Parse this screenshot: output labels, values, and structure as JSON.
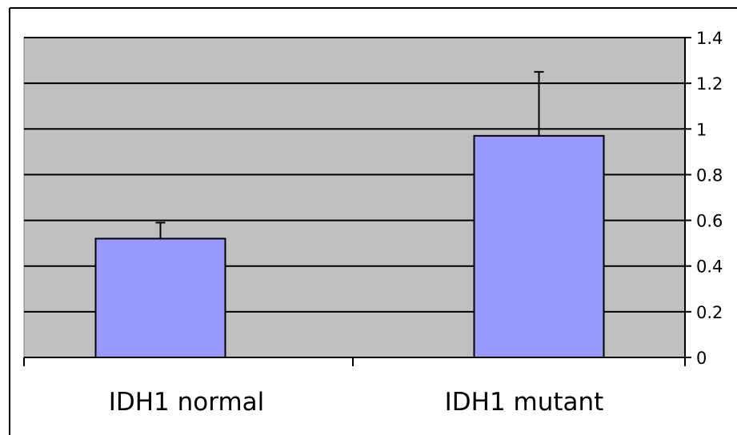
{
  "chart_data": {
    "type": "bar",
    "title": "",
    "xlabel": "",
    "ylabel": "",
    "categories": [
      "IDH1 normal",
      "IDH1 mutant"
    ],
    "series": [
      {
        "values": [
          0.52,
          0.97
        ],
        "error": [
          0.07,
          0.28
        ]
      }
    ],
    "ylim": [
      0,
      1.4
    ],
    "yticks": [
      0,
      0.2,
      0.4,
      0.6,
      0.8,
      1,
      1.2,
      1.4
    ],
    "ytick_labels": [
      "0",
      "0.2",
      "0.4",
      "0.6",
      "0.8",
      "1",
      "1.2",
      "1.4"
    ],
    "y_axis_side": "right",
    "grid": true,
    "legend": "none",
    "colors": {
      "bar": "#9999ff",
      "bar_edge": "#000000",
      "plot_background": "#c0c0c0",
      "gridline": "#000000",
      "page_background": "#ffffff"
    }
  }
}
